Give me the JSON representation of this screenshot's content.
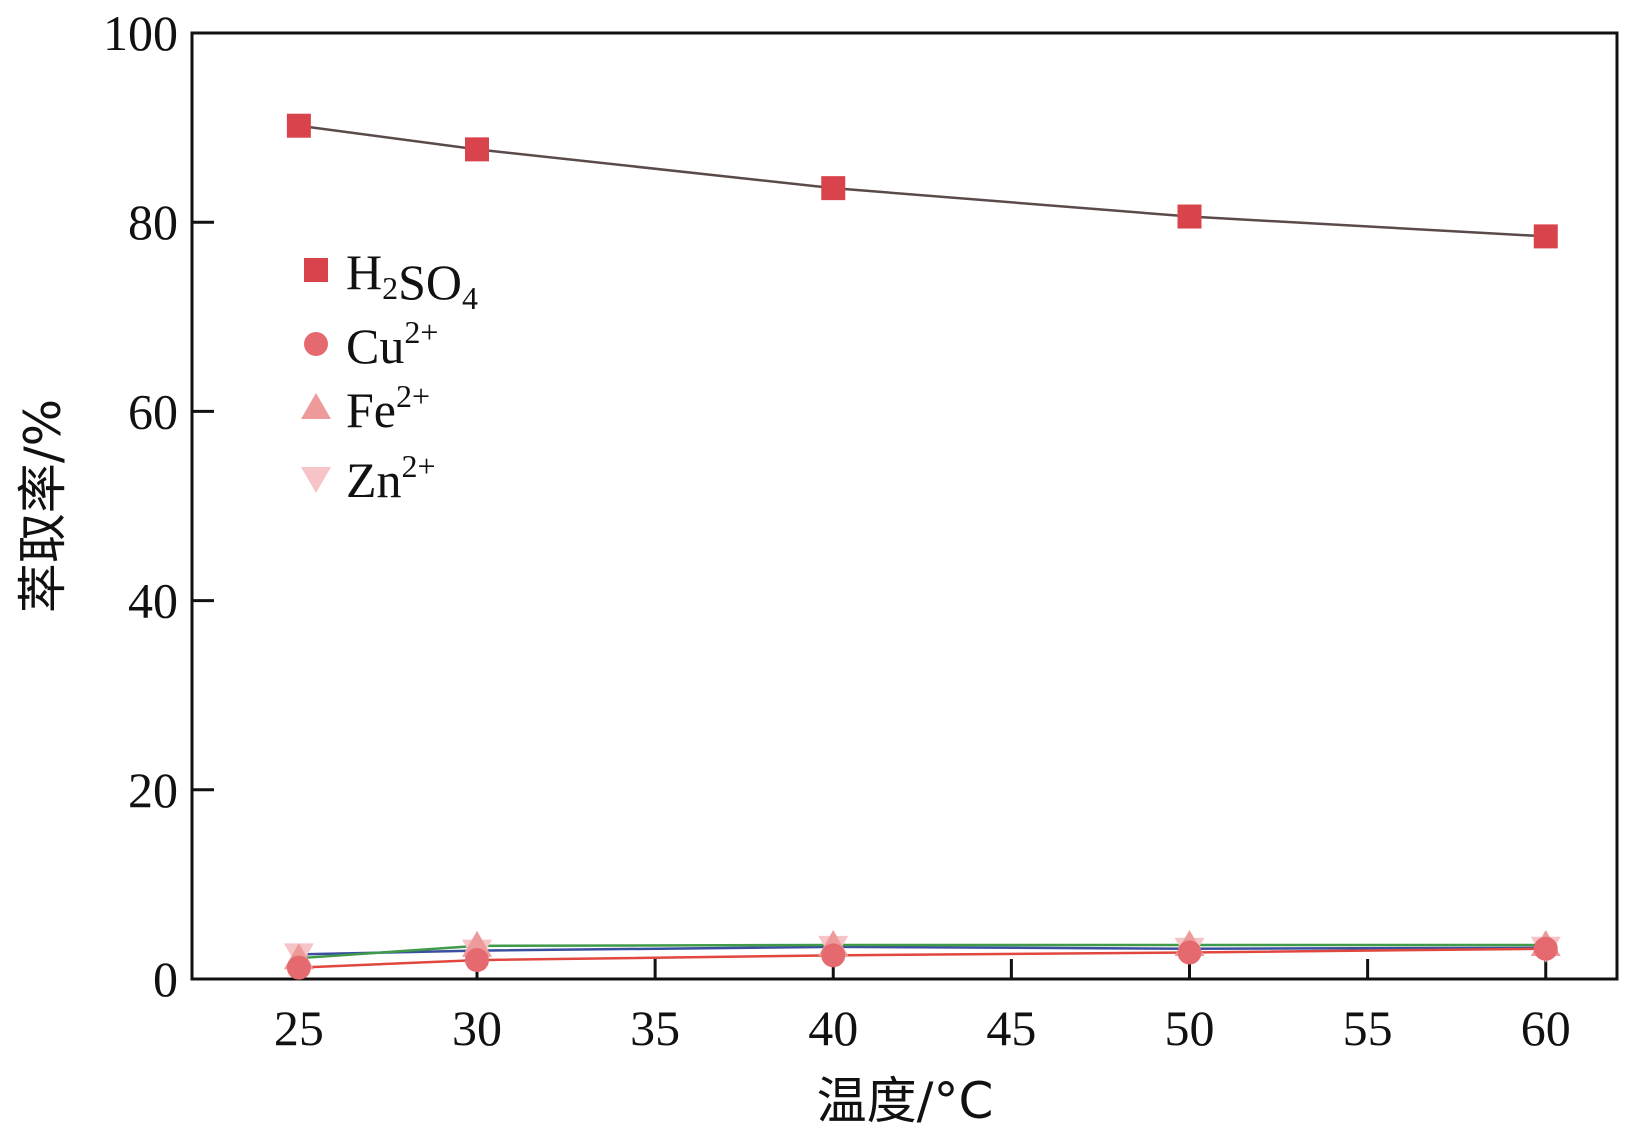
{
  "chart_data": {
    "type": "line",
    "xlabel": "温度/°C",
    "ylabel": "萃取率/%",
    "xlim": [
      22,
      62
    ],
    "ylim": [
      0,
      100
    ],
    "x_ticks": [
      25,
      30,
      35,
      40,
      45,
      50,
      55,
      60
    ],
    "y_ticks": [
      0,
      20,
      40,
      60,
      80,
      100
    ],
    "grid": false,
    "legend_position": "upper-left",
    "x": [
      25,
      30,
      40,
      50,
      60
    ],
    "series": [
      {
        "name": "H2SO4",
        "legend_base": "H",
        "legend_parts": [
          {
            "t": "H",
            "sub": false
          },
          {
            "t": "2",
            "sub": true
          },
          {
            "t": "SO",
            "sub": false
          },
          {
            "t": "4",
            "sub": true
          }
        ],
        "marker": "square",
        "marker_color": "#d9434b",
        "line_color": "#5a4a4a",
        "values": [
          90.2,
          87.7,
          83.6,
          80.6,
          78.5
        ]
      },
      {
        "name": "Cu2+",
        "legend_parts": [
          {
            "t": "Cu",
            "sub": false
          },
          {
            "t": "2+",
            "sup": true
          }
        ],
        "marker": "circle",
        "marker_color": "#e46a6f",
        "line_color": "#e0473f",
        "values": [
          1.2,
          2.0,
          2.5,
          2.8,
          3.2
        ]
      },
      {
        "name": "Fe2+",
        "legend_parts": [
          {
            "t": "Fe",
            "sub": false
          },
          {
            "t": "2+",
            "sup": true
          }
        ],
        "marker": "triangle-up",
        "marker_color": "#ee9a9a",
        "line_color": "#3f9a4a",
        "values": [
          2.2,
          3.5,
          3.6,
          3.6,
          3.6
        ]
      },
      {
        "name": "Zn2+",
        "legend_parts": [
          {
            "t": "Zn",
            "sub": false
          },
          {
            "t": "2+",
            "sup": true
          }
        ],
        "marker": "triangle-down",
        "marker_color": "#f6c3c6",
        "line_color": "#3a4fa0",
        "values": [
          2.6,
          3.0,
          3.4,
          3.2,
          3.3
        ]
      }
    ]
  }
}
